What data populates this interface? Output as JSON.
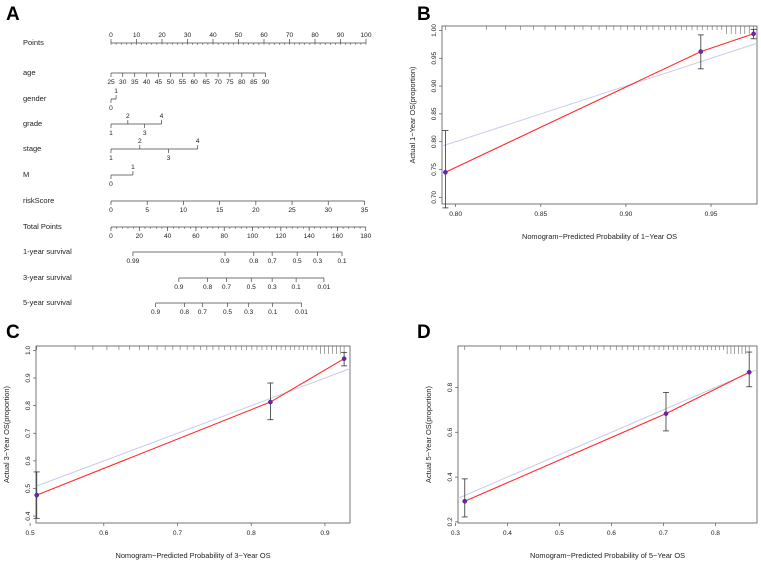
{
  "colors": {
    "calibration": "#ff2a2a",
    "ideal": "#c7ccea",
    "point": "#7a1fa2",
    "axis": "#444444"
  },
  "nomogram": {
    "letter": "A",
    "rows": [
      {
        "id": "points",
        "label": "Points",
        "ticks": [
          {
            "v": 0,
            "t": "0",
            "pos": "top"
          },
          {
            "v": 10,
            "t": "10",
            "pos": "top"
          },
          {
            "v": 20,
            "t": "20",
            "pos": "top"
          },
          {
            "v": 30,
            "t": "30",
            "pos": "top"
          },
          {
            "v": 40,
            "t": "40",
            "pos": "top"
          },
          {
            "v": 50,
            "t": "50",
            "pos": "top"
          },
          {
            "v": 60,
            "t": "60",
            "pos": "top"
          },
          {
            "v": 70,
            "t": "70",
            "pos": "top"
          },
          {
            "v": 80,
            "t": "80",
            "pos": "top"
          },
          {
            "v": 90,
            "t": "90",
            "pos": "top"
          },
          {
            "v": 100,
            "t": "100",
            "pos": "top"
          }
        ]
      },
      {
        "id": "age",
        "label": "age",
        "ticks": [
          {
            "v": 0,
            "t": "25",
            "pos": "bottom"
          },
          {
            "v": 4.6,
            "t": "30",
            "pos": "bottom"
          },
          {
            "v": 9.3,
            "t": "35",
            "pos": "bottom"
          },
          {
            "v": 14,
            "t": "40",
            "pos": "bottom"
          },
          {
            "v": 18.6,
            "t": "45",
            "pos": "bottom"
          },
          {
            "v": 23.3,
            "t": "50",
            "pos": "bottom"
          },
          {
            "v": 28,
            "t": "55",
            "pos": "bottom"
          },
          {
            "v": 32.6,
            "t": "60",
            "pos": "bottom"
          },
          {
            "v": 37.3,
            "t": "65",
            "pos": "bottom"
          },
          {
            "v": 42,
            "t": "70",
            "pos": "bottom"
          },
          {
            "v": 46.6,
            "t": "75",
            "pos": "bottom"
          },
          {
            "v": 51.3,
            "t": "80",
            "pos": "bottom"
          },
          {
            "v": 56,
            "t": "85",
            "pos": "bottom"
          },
          {
            "v": 60.6,
            "t": "90",
            "pos": "bottom"
          }
        ]
      },
      {
        "id": "gender",
        "label": "gender",
        "ticks": [
          {
            "v": 0,
            "t": "0",
            "pos": "bottom"
          },
          {
            "v": 2,
            "t": "1",
            "pos": "top"
          }
        ]
      },
      {
        "id": "grade",
        "label": "grade",
        "ticks": [
          {
            "v": 0,
            "t": "1",
            "pos": "bottom"
          },
          {
            "v": 6.6,
            "t": "2",
            "pos": "top"
          },
          {
            "v": 13.2,
            "t": "3",
            "pos": "bottom"
          },
          {
            "v": 19.8,
            "t": "4",
            "pos": "top"
          }
        ]
      },
      {
        "id": "stage",
        "label": "stage",
        "ticks": [
          {
            "v": 0,
            "t": "1",
            "pos": "bottom"
          },
          {
            "v": 11.3,
            "t": "2",
            "pos": "top"
          },
          {
            "v": 22.6,
            "t": "3",
            "pos": "bottom"
          },
          {
            "v": 34,
            "t": "4",
            "pos": "top"
          }
        ]
      },
      {
        "id": "m",
        "label": "M",
        "ticks": [
          {
            "v": 0,
            "t": "0",
            "pos": "bottom"
          },
          {
            "v": 8.6,
            "t": "1",
            "pos": "top"
          }
        ]
      },
      {
        "id": "riskscore",
        "label": "riskScore",
        "ticks": [
          {
            "v": 0,
            "t": "0",
            "pos": "bottom"
          },
          {
            "v": 14.2,
            "t": "5",
            "pos": "bottom"
          },
          {
            "v": 28.4,
            "t": "10",
            "pos": "bottom"
          },
          {
            "v": 42.6,
            "t": "15",
            "pos": "bottom"
          },
          {
            "v": 56.8,
            "t": "20",
            "pos": "bottom"
          },
          {
            "v": 71,
            "t": "25",
            "pos": "bottom"
          },
          {
            "v": 85.2,
            "t": "30",
            "pos": "bottom"
          },
          {
            "v": 99.4,
            "t": "35",
            "pos": "bottom"
          }
        ]
      },
      {
        "id": "total",
        "label": "Total Points",
        "ticks": [
          {
            "v": 0,
            "t": "0",
            "pos": "bottom"
          },
          {
            "v": 11.1,
            "t": "20",
            "pos": "bottom"
          },
          {
            "v": 22.2,
            "t": "40",
            "pos": "bottom"
          },
          {
            "v": 33.3,
            "t": "60",
            "pos": "bottom"
          },
          {
            "v": 44.4,
            "t": "80",
            "pos": "bottom"
          },
          {
            "v": 55.5,
            "t": "100",
            "pos": "bottom"
          },
          {
            "v": 66.6,
            "t": "120",
            "pos": "bottom"
          },
          {
            "v": 77.7,
            "t": "140",
            "pos": "bottom"
          },
          {
            "v": 88.8,
            "t": "160",
            "pos": "bottom"
          },
          {
            "v": 99.9,
            "t": "180",
            "pos": "bottom"
          }
        ]
      },
      {
        "id": "surv1",
        "label": "1-year survival",
        "ticks": [
          {
            "v": 8.6,
            "t": "0.99",
            "pos": "bottom"
          },
          {
            "v": 44.7,
            "t": "0.9",
            "pos": "bottom"
          },
          {
            "v": 56,
            "t": "0.8",
            "pos": "bottom"
          },
          {
            "v": 63.2,
            "t": "0.7",
            "pos": "bottom"
          },
          {
            "v": 73,
            "t": "0.5",
            "pos": "bottom"
          },
          {
            "v": 81,
            "t": "0.3",
            "pos": "bottom"
          },
          {
            "v": 90.6,
            "t": "0.1",
            "pos": "bottom"
          }
        ]
      },
      {
        "id": "surv3",
        "label": "3-year survival",
        "ticks": [
          {
            "v": 26.6,
            "t": "0.9",
            "pos": "bottom"
          },
          {
            "v": 37.9,
            "t": "0.8",
            "pos": "bottom"
          },
          {
            "v": 45.3,
            "t": "0.7",
            "pos": "bottom"
          },
          {
            "v": 55,
            "t": "0.5",
            "pos": "bottom"
          },
          {
            "v": 63.2,
            "t": "0.3",
            "pos": "bottom"
          },
          {
            "v": 72.6,
            "t": "0.1",
            "pos": "bottom"
          },
          {
            "v": 83.5,
            "t": "0.01",
            "pos": "bottom"
          }
        ]
      },
      {
        "id": "surv5",
        "label": "5-year survival",
        "ticks": [
          {
            "v": 17.5,
            "t": "0.9",
            "pos": "bottom"
          },
          {
            "v": 28.8,
            "t": "0.8",
            "pos": "bottom"
          },
          {
            "v": 35.8,
            "t": "0.7",
            "pos": "bottom"
          },
          {
            "v": 45.7,
            "t": "0.5",
            "pos": "bottom"
          },
          {
            "v": 54,
            "t": "0.3",
            "pos": "bottom"
          },
          {
            "v": 63.4,
            "t": "0.1",
            "pos": "bottom"
          },
          {
            "v": 74.7,
            "t": "0.01",
            "pos": "bottom"
          }
        ]
      }
    ]
  },
  "chart_data": [
    {
      "panel": "B",
      "type": "scatter",
      "xlabel": "Nomogram−Predicted Probability of 1−Year OS",
      "ylabel": "Actual 1−Year OS(proportion)",
      "xlim": [
        0.792,
        0.977
      ],
      "ylim": [
        0.688,
        1.008
      ],
      "xticks": [
        0.8,
        0.85,
        0.9,
        0.95
      ],
      "xtick_labels": [
        "0.80",
        "0.85",
        "0.90",
        "0.95"
      ],
      "yticks": [
        0.7,
        0.75,
        0.8,
        0.85,
        0.9,
        0.95,
        1.0
      ],
      "ytick_labels": [
        "0.70",
        "0.75",
        "0.80",
        "0.85",
        "0.90",
        "0.95",
        "1.00"
      ],
      "points": [
        {
          "x": 0.794,
          "y": 0.745,
          "lo": 0.681,
          "hi": 0.82
        },
        {
          "x": 0.944,
          "y": 0.962,
          "lo": 0.931,
          "hi": 0.992
        },
        {
          "x": 0.975,
          "y": 0.994,
          "lo": 0.985,
          "hi": 1.002
        }
      ],
      "ideal": [
        [
          0.792,
          0.792
        ],
        [
          0.977,
          0.977
        ]
      ],
      "rug_count": 40
    },
    {
      "panel": "C",
      "type": "scatter",
      "xlabel": "Nomogram−Predicted Probability of 3−Year OS",
      "ylabel": "Actual 3−Year OS(proportion)",
      "xlim": [
        0.508,
        0.934
      ],
      "ylim": [
        0.375,
        1.016
      ],
      "xticks": [
        0.5,
        0.6,
        0.7,
        0.8,
        0.9
      ],
      "xtick_labels": [
        "0.5",
        "0.6",
        "0.7",
        "0.8",
        "0.9"
      ],
      "yticks": [
        0.4,
        0.5,
        0.6,
        0.7,
        0.8,
        0.9,
        1.0
      ],
      "ytick_labels": [
        "0.4",
        "0.5",
        "0.6",
        "0.7",
        "0.8",
        "0.9",
        "1.0"
      ],
      "points": [
        {
          "x": 0.509,
          "y": 0.476,
          "lo": 0.392,
          "hi": 0.56
        },
        {
          "x": 0.826,
          "y": 0.813,
          "lo": 0.749,
          "hi": 0.882
        },
        {
          "x": 0.926,
          "y": 0.97,
          "lo": 0.944,
          "hi": 0.993
        }
      ],
      "ideal": [
        [
          0.508,
          0.508
        ],
        [
          0.934,
          0.934
        ]
      ],
      "rug_count": 45
    },
    {
      "panel": "D",
      "type": "scatter",
      "xlabel": "Nomogram−Predicted Probability of 5−Year OS",
      "ylabel": "Actual 5−Year OS(proportion)",
      "xlim": [
        0.305,
        0.88
      ],
      "ylim": [
        0.195,
        0.985
      ],
      "xticks": [
        0.3,
        0.4,
        0.5,
        0.6,
        0.7,
        0.8
      ],
      "xtick_labels": [
        "0.3",
        "0.4",
        "0.5",
        "0.6",
        "0.7",
        "0.8"
      ],
      "yticks": [
        0.2,
        0.4,
        0.6,
        0.8
      ],
      "ytick_labels": [
        "0.2",
        "0.4",
        "0.6",
        "0.8"
      ],
      "points": [
        {
          "x": 0.318,
          "y": 0.292,
          "lo": 0.222,
          "hi": 0.392
        },
        {
          "x": 0.705,
          "y": 0.683,
          "lo": 0.606,
          "hi": 0.778
        },
        {
          "x": 0.865,
          "y": 0.868,
          "lo": 0.803,
          "hi": 0.958
        }
      ],
      "ideal": [
        [
          0.305,
          0.305
        ],
        [
          0.88,
          0.88
        ]
      ],
      "rug_count": 45
    }
  ]
}
